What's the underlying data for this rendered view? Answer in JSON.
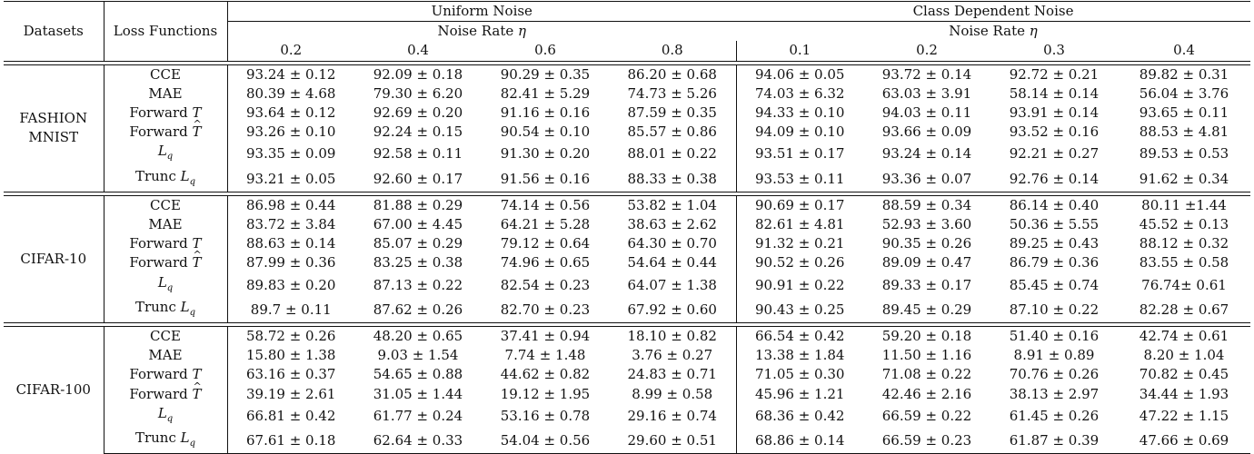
{
  "header": {
    "datasets": "Datasets",
    "loss_functions": "Loss Functions",
    "uniform": "Uniform Noise",
    "class_dep": "Class Dependent Noise",
    "noise_rate_label": "Noise Rate",
    "noise_rate_symbol": "η",
    "uniform_rates": [
      "0.2",
      "0.4",
      "0.6",
      "0.8"
    ],
    "class_rates": [
      "0.1",
      "0.2",
      "0.3",
      "0.4"
    ]
  },
  "loss_names": {
    "cce": "CCE",
    "mae": "MAE",
    "forward": "Forward",
    "forward_sym": "T",
    "lq": "L",
    "lq_sub": "q",
    "trunc": "Trunc"
  },
  "groups": [
    {
      "dataset": [
        "FASHION",
        "MNIST"
      ],
      "rows": {
        "cce": [
          "93.24 ± 0.12",
          "92.09 ± 0.18",
          "90.29 ± 0.35",
          "86.20 ± 0.68",
          "94.06 ± 0.05",
          "93.72 ± 0.14",
          "92.72 ± 0.21",
          "89.82 ± 0.31"
        ],
        "mae": [
          "80.39 ± 4.68",
          "79.30 ± 6.20",
          "82.41 ± 5.29",
          "74.73 ± 5.26",
          "74.03 ± 6.32",
          "63.03 ± 3.91",
          "58.14 ± 0.14",
          "56.04 ± 3.76"
        ],
        "fwd": [
          "93.64 ± 0.12",
          "92.69 ± 0.20",
          "91.16 ± 0.16",
          "87.59 ± 0.35",
          "94.33 ± 0.10",
          "94.03 ± 0.11",
          "93.91 ± 0.14",
          "93.65 ± 0.11"
        ],
        "fwdhat": [
          "93.26 ± 0.10",
          "92.24 ± 0.15",
          "90.54 ± 0.10",
          "85.57 ± 0.86",
          "94.09 ± 0.10",
          "93.66 ± 0.09",
          "93.52 ± 0.16",
          "88.53 ± 4.81"
        ],
        "lq": [
          "93.35 ± 0.09",
          "92.58 ± 0.11",
          "91.30 ± 0.20",
          "88.01 ± 0.22",
          "93.51 ± 0.17",
          "93.24 ± 0.14",
          "92.21 ± 0.27",
          "89.53 ± 0.53"
        ],
        "trunc": [
          "93.21 ± 0.05",
          "92.60 ± 0.17",
          "91.56 ± 0.16",
          "88.33 ± 0.38",
          "93.53 ± 0.11",
          "93.36 ± 0.07",
          "92.76 ± 0.14",
          "91.62 ± 0.34"
        ]
      },
      "bold": {
        "cce": [],
        "mae": [],
        "fwd": [
          0,
          1,
          2,
          4,
          5,
          6,
          7
        ],
        "fwdhat": [
          4,
          5,
          6
        ],
        "lq": [
          0,
          3
        ],
        "trunc": [
          1,
          2,
          3,
          7
        ]
      }
    },
    {
      "dataset": [
        "CIFAR-10"
      ],
      "rows": {
        "cce": [
          "86.98 ± 0.44",
          "81.88 ± 0.29",
          "74.14 ± 0.56",
          "53.82 ± 1.04",
          "90.69 ± 0.17",
          "88.59 ± 0.34",
          "86.14 ± 0.40",
          "80.11 ±1.44"
        ],
        "mae": [
          "83.72 ± 3.84",
          "67.00 ± 4.45",
          "64.21 ± 5.28",
          "38.63 ± 2.62",
          "82.61 ± 4.81",
          "52.93 ± 3.60",
          "50.36 ± 5.55",
          "45.52 ± 0.13"
        ],
        "fwd": [
          "88.63 ± 0.14",
          "85.07 ± 0.29",
          "79.12 ± 0.64",
          "64.30 ± 0.70",
          "91.32 ± 0.21",
          "90.35 ± 0.26",
          "89.25 ± 0.43",
          "88.12 ± 0.32"
        ],
        "fwdhat": [
          "87.99 ± 0.36",
          "83.25 ± 0.38",
          "74.96 ± 0.65",
          "54.64 ± 0.44",
          "90.52 ± 0.26",
          "89.09 ± 0.47",
          "86.79 ± 0.36",
          "83.55 ± 0.58"
        ],
        "lq": [
          "89.83 ± 0.20",
          "87.13 ± 0.22",
          "82.54 ± 0.23",
          "64.07 ± 1.38",
          "90.91 ± 0.22",
          "89.33 ± 0.17",
          "85.45 ± 0.74",
          "76.74± 0.61"
        ],
        "trunc": [
          "89.7 ± 0.11",
          "87.62 ± 0.26",
          "82.70 ± 0.23",
          "67.92 ± 0.60",
          "90.43 ± 0.25",
          "89.45 ± 0.29",
          "87.10 ± 0.22",
          "82.28 ± 0.67"
        ]
      },
      "bold": {
        "cce": [],
        "mae": [],
        "fwd": [
          3,
          4,
          5,
          6,
          7
        ],
        "fwdhat": [
          7
        ],
        "lq": [
          0,
          1,
          2,
          4
        ],
        "trunc": [
          0,
          1,
          2,
          3,
          5,
          6
        ]
      }
    },
    {
      "dataset": [
        "CIFAR-100"
      ],
      "rows": {
        "cce": [
          "58.72 ± 0.26",
          "48.20 ± 0.65",
          "37.41 ± 0.94",
          "18.10 ± 0.82",
          "66.54 ± 0.42",
          "59.20 ± 0.18",
          "51.40 ± 0.16",
          "42.74 ± 0.61"
        ],
        "mae": [
          "15.80 ± 1.38",
          "9.03 ± 1.54",
          "7.74 ± 1.48",
          "3.76 ± 0.27",
          "13.38 ± 1.84",
          "11.50 ± 1.16",
          "8.91 ± 0.89",
          "8.20 ± 1.04"
        ],
        "fwd": [
          "63.16 ± 0.37",
          "54.65 ± 0.88",
          "44.62 ± 0.82",
          "24.83 ± 0.71",
          "71.05 ± 0.30",
          "71.08 ± 0.22",
          "70.76 ± 0.26",
          "70.82 ± 0.45"
        ],
        "fwdhat": [
          "39.19 ± 2.61",
          "31.05 ± 1.44",
          "19.12 ± 1.95",
          "8.99 ± 0.58",
          "45.96 ± 1.21",
          "42.46 ± 2.16",
          "38.13 ± 2.97",
          "34.44 ± 1.93"
        ],
        "lq": [
          "66.81 ± 0.42",
          "61.77 ± 0.24",
          "53.16 ± 0.78",
          "29.16 ± 0.74",
          "68.36 ± 0.42",
          "66.59 ± 0.22",
          "61.45 ± 0.26",
          "47.22 ± 1.15"
        ],
        "trunc": [
          "67.61 ± 0.18",
          "62.64 ± 0.33",
          "54.04 ± 0.56",
          "29.60 ± 0.51",
          "68.86 ± 0.14",
          "66.59 ± 0.23",
          "61.87 ± 0.39",
          "47.66 ± 0.69"
        ]
      },
      "bold": {
        "cce": [],
        "mae": [],
        "fwd": [
          4,
          5,
          6,
          7
        ],
        "fwdhat": [],
        "lq": [
          0,
          1,
          2,
          3
        ],
        "trunc": [
          0,
          1,
          2,
          3,
          4,
          5,
          6,
          7
        ]
      }
    }
  ]
}
